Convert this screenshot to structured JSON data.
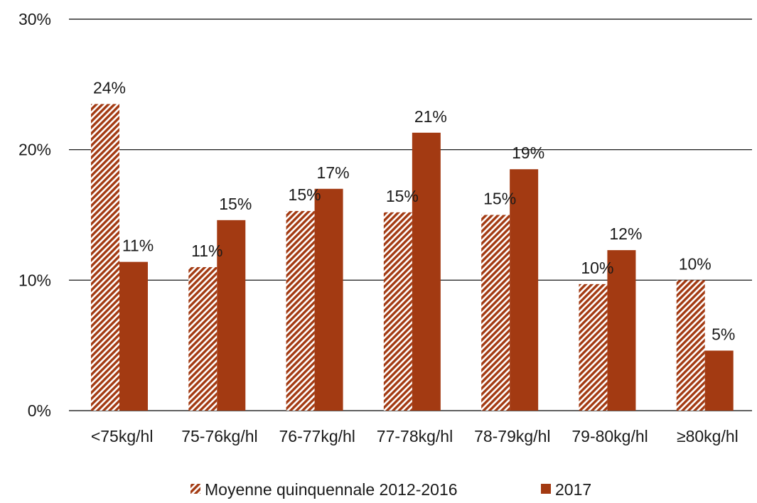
{
  "chart_data": {
    "type": "bar",
    "title": "",
    "xlabel": "",
    "ylabel": "",
    "ylim": [
      0,
      30
    ],
    "y_ticks": [
      0,
      10,
      20,
      30
    ],
    "y_tick_labels": [
      "0%",
      "10%",
      "20%",
      "30%"
    ],
    "grid": true,
    "legend_position": "bottom",
    "categories": [
      "<75kg/hl",
      "75-76kg/hl",
      "76-77kg/hl",
      "77-78kg/hl",
      "78-79kg/hl",
      "79-80kg/hl",
      "≥80kg/hl"
    ],
    "series": [
      {
        "name": "Moyenne quinquennale 2012-2016",
        "values": [
          23.5,
          11.0,
          15.3,
          15.2,
          15.0,
          9.7,
          10.0
        ],
        "data_labels": [
          "24%",
          "11%",
          "15%",
          "15%",
          "15%",
          "10%",
          "10%"
        ],
        "color": "#a33a12",
        "pattern": "hatched"
      },
      {
        "name": "2017",
        "values": [
          11.4,
          14.6,
          17.0,
          21.3,
          18.5,
          12.3,
          4.6
        ],
        "data_labels": [
          "11%",
          "15%",
          "17%",
          "21%",
          "19%",
          "12%",
          "5%"
        ],
        "color": "#a33a12",
        "pattern": "solid"
      }
    ]
  }
}
